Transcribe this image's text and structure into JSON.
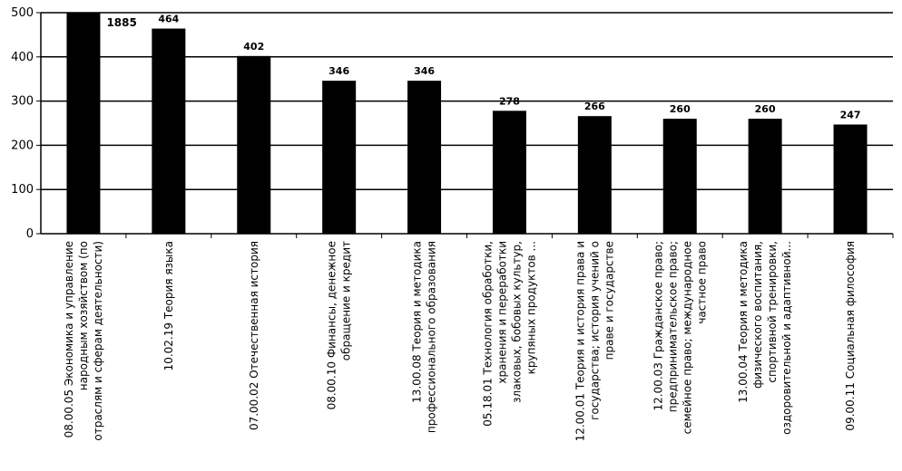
{
  "chart_data": {
    "type": "bar",
    "title": "",
    "xlabel": "",
    "ylabel": "",
    "ylim": [
      0,
      500
    ],
    "y_ticks": [
      "0",
      "100",
      "200",
      "300",
      "400",
      "500"
    ],
    "grid": "horizontal",
    "bar_color": "#000000",
    "categories": [
      [
        "08.00.05 Экономика и управление",
        "народным хозяйством (по",
        "отраслям и сферам деятельности)"
      ],
      [
        "10.02.19 Теория языка"
      ],
      [
        "07.00.02 Отечественная история"
      ],
      [
        "08.00.10 Финансы, денежное",
        "обращение и кредит"
      ],
      [
        "13.00.08 Теория и методика",
        "профессионального образования"
      ],
      [
        "05.18.01 Технология обработки,",
        "хранения и переработки",
        "злаковых, бобовых культур,",
        "крупяных продуктов ..."
      ],
      [
        "12.00.01 Теория и история права и",
        "государства; история учений о",
        "праве и государстве"
      ],
      [
        "12.00.03 Гражданское право;",
        "предпринимательское право;",
        "семейное право; международное",
        "частное право"
      ],
      [
        "13.00.04 Теория и методика",
        "физического воспитания,",
        "спортивной тренировки,",
        "оздоровительной и адаптивной..."
      ],
      [
        "09.00.11 Социальная философия"
      ]
    ],
    "values": [
      1885,
      464,
      402,
      346,
      346,
      278,
      266,
      260,
      260,
      247
    ],
    "data_labels": [
      "1885",
      "464",
      "402",
      "346",
      "346",
      "278",
      "266",
      "260",
      "260",
      "247"
    ]
  }
}
